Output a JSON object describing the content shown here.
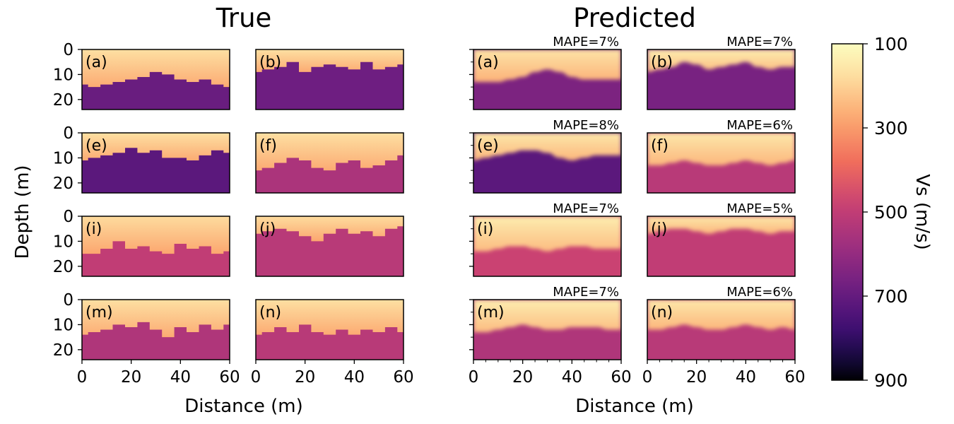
{
  "figure": {
    "left_title": "True",
    "right_title": "Predicted",
    "y_label": "Depth (m)",
    "left_x_label": "Distance (m)",
    "right_x_label": "Distance (m)",
    "colorbar_label": "Vs (m/s)"
  },
  "chart_data": {
    "type": "heatmap",
    "colormap": "magma_r",
    "depth_ticks": [
      0,
      10,
      20
    ],
    "depth_range": [
      0,
      24
    ],
    "distance_ticks": [
      0,
      20,
      40,
      60
    ],
    "distance_range": [
      0,
      60
    ],
    "colorbar": {
      "ticks": [
        100,
        300,
        500,
        700,
        900
      ],
      "range": [
        100,
        900
      ]
    },
    "panels": [
      {
        "id": "true-a",
        "group": "True",
        "label": "(a)",
        "row": 0,
        "col": 0,
        "mape": "",
        "top_vs": 230,
        "bottom_vs": 690,
        "interface": [
          14,
          15,
          14,
          13,
          12,
          11,
          9,
          10,
          12,
          13,
          12,
          14,
          15
        ]
      },
      {
        "id": "true-b",
        "group": "True",
        "label": "(b)",
        "row": 0,
        "col": 1,
        "mape": "",
        "top_vs": 230,
        "bottom_vs": 680,
        "interface": [
          9,
          8,
          7,
          5,
          9,
          7,
          6,
          7,
          8,
          5,
          8,
          7,
          6
        ]
      },
      {
        "id": "true-e",
        "group": "True",
        "label": "(e)",
        "row": 1,
        "col": 0,
        "mape": "",
        "top_vs": 230,
        "bottom_vs": 720,
        "interface": [
          11,
          10,
          9,
          8,
          6,
          8,
          7,
          10,
          10,
          11,
          9,
          7,
          8
        ]
      },
      {
        "id": "true-f",
        "group": "True",
        "label": "(f)",
        "row": 1,
        "col": 1,
        "mape": "",
        "top_vs": 230,
        "bottom_vs": 550,
        "interface": [
          15,
          14,
          12,
          10,
          11,
          14,
          15,
          12,
          11,
          14,
          13,
          11,
          9
        ]
      },
      {
        "id": "true-i",
        "group": "True",
        "label": "(i)",
        "row": 2,
        "col": 0,
        "mape": "",
        "top_vs": 240,
        "bottom_vs": 500,
        "interface": [
          15,
          15,
          13,
          10,
          13,
          12,
          14,
          15,
          11,
          13,
          12,
          15,
          14
        ]
      },
      {
        "id": "true-j",
        "group": "True",
        "label": "(j)",
        "row": 2,
        "col": 1,
        "mape": "",
        "top_vs": 240,
        "bottom_vs": 520,
        "interface": [
          7,
          6,
          5,
          6,
          8,
          10,
          7,
          5,
          7,
          6,
          8,
          5,
          4
        ]
      },
      {
        "id": "true-m",
        "group": "True",
        "label": "(m)",
        "row": 3,
        "col": 0,
        "mape": "",
        "top_vs": 230,
        "bottom_vs": 540,
        "interface": [
          14,
          13,
          12,
          10,
          11,
          9,
          12,
          15,
          11,
          13,
          10,
          12,
          10
        ]
      },
      {
        "id": "true-n",
        "group": "True",
        "label": "(n)",
        "row": 3,
        "col": 1,
        "mape": "",
        "top_vs": 230,
        "bottom_vs": 520,
        "interface": [
          14,
          13,
          11,
          13,
          10,
          13,
          14,
          12,
          14,
          12,
          13,
          11,
          13
        ]
      },
      {
        "id": "pred-a",
        "group": "Predicted",
        "label": "(a)",
        "row": 0,
        "col": 0,
        "mape": "MAPE=7%",
        "top_vs": 220,
        "bottom_vs": 650,
        "interface": [
          13,
          13,
          13,
          12,
          11,
          9,
          8,
          9,
          11,
          12,
          12,
          12,
          12
        ]
      },
      {
        "id": "pred-b",
        "group": "Predicted",
        "label": "(b)",
        "row": 0,
        "col": 1,
        "mape": "MAPE=7%",
        "top_vs": 200,
        "bottom_vs": 660,
        "interface": [
          9,
          8,
          7,
          5,
          6,
          8,
          7,
          6,
          5,
          7,
          8,
          7,
          7
        ]
      },
      {
        "id": "pred-e",
        "group": "Predicted",
        "label": "(e)",
        "row": 1,
        "col": 0,
        "mape": "MAPE=8%",
        "top_vs": 210,
        "bottom_vs": 720,
        "interface": [
          11,
          10,
          9,
          8,
          7,
          7,
          8,
          10,
          11,
          10,
          9,
          9,
          9
        ]
      },
      {
        "id": "pred-f",
        "group": "Predicted",
        "label": "(f)",
        "row": 1,
        "col": 1,
        "mape": "MAPE=6%",
        "top_vs": 210,
        "bottom_vs": 520,
        "interface": [
          13,
          13,
          12,
          11,
          12,
          13,
          13,
          12,
          11,
          12,
          13,
          12,
          11
        ]
      },
      {
        "id": "pred-i",
        "group": "Predicted",
        "label": "(i)",
        "row": 2,
        "col": 0,
        "mape": "MAPE=7%",
        "top_vs": 200,
        "bottom_vs": 480,
        "interface": [
          14,
          14,
          13,
          12,
          12,
          13,
          14,
          13,
          12,
          12,
          13,
          13,
          13
        ]
      },
      {
        "id": "pred-j",
        "group": "Predicted",
        "label": "(j)",
        "row": 2,
        "col": 1,
        "mape": "MAPE=5%",
        "top_vs": 210,
        "bottom_vs": 500,
        "interface": [
          7,
          6,
          5,
          5,
          6,
          7,
          6,
          5,
          5,
          6,
          7,
          6,
          6
        ]
      },
      {
        "id": "pred-m",
        "group": "Predicted",
        "label": "(m)",
        "row": 3,
        "col": 0,
        "mape": "MAPE=7%",
        "top_vs": 200,
        "bottom_vs": 540,
        "interface": [
          13,
          13,
          12,
          11,
          10,
          11,
          12,
          12,
          11,
          11,
          11,
          12,
          12
        ]
      },
      {
        "id": "pred-n",
        "group": "Predicted",
        "label": "(n)",
        "row": 3,
        "col": 1,
        "mape": "MAPE=6%",
        "top_vs": 210,
        "bottom_vs": 520,
        "interface": [
          12,
          12,
          11,
          10,
          11,
          12,
          12,
          11,
          10,
          11,
          12,
          11,
          12
        ]
      }
    ]
  }
}
